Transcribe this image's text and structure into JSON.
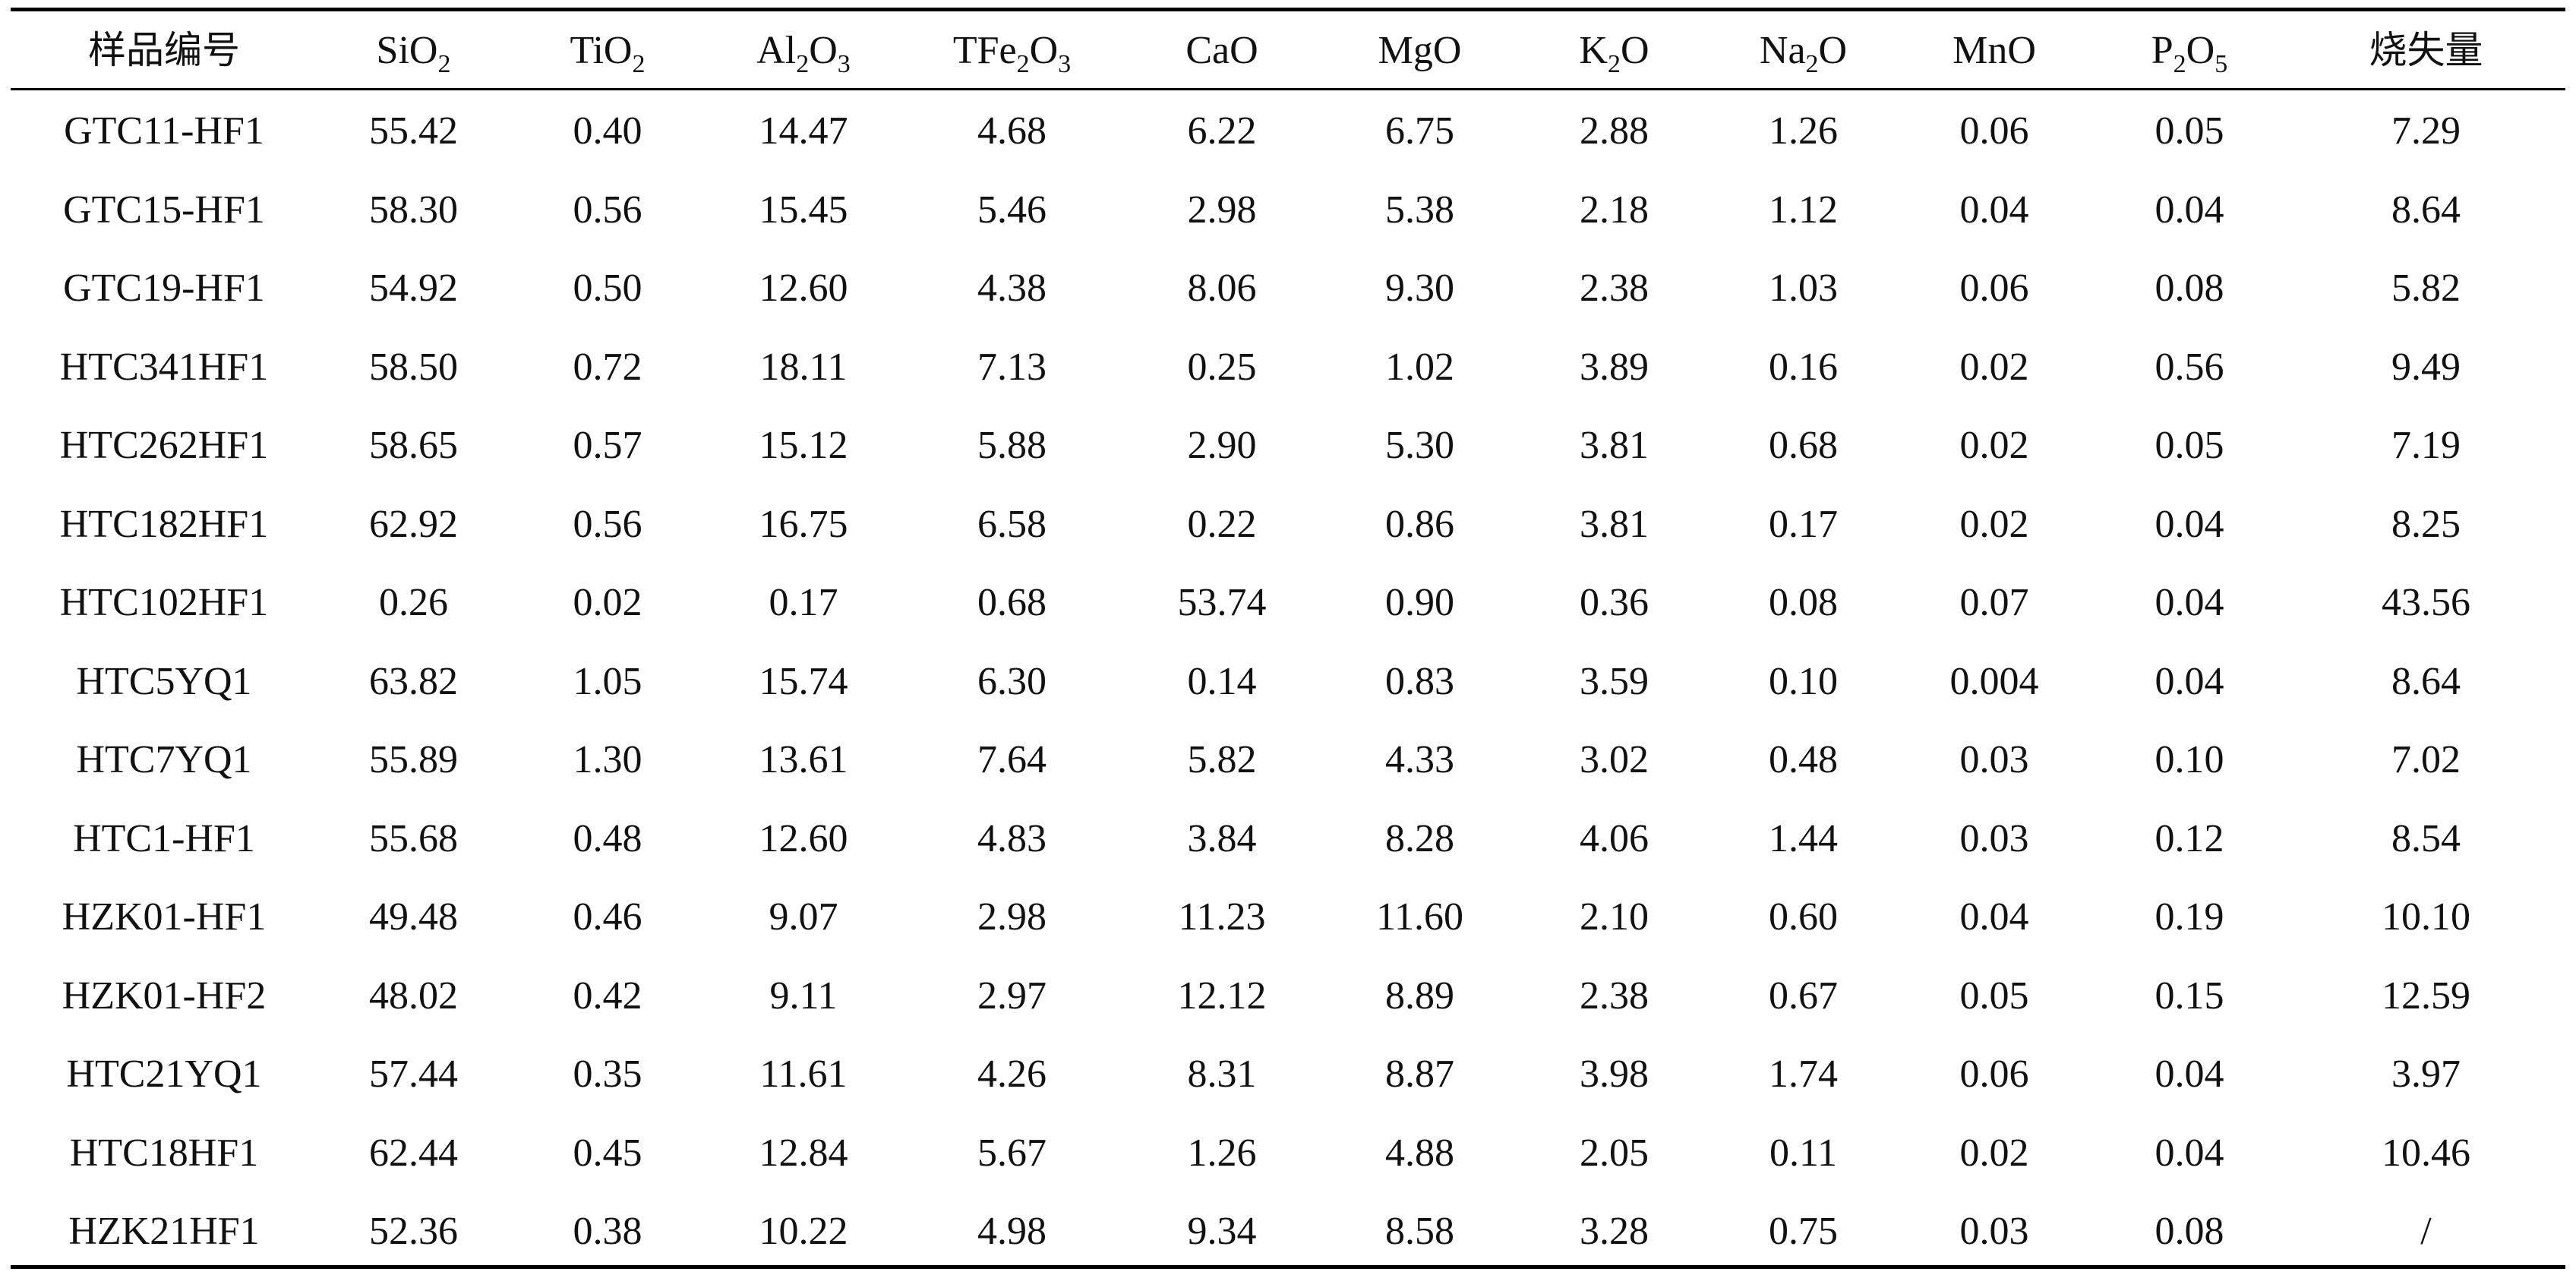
{
  "table": {
    "headers": [
      {
        "pre": "样品编号",
        "sub": "",
        "post": ""
      },
      {
        "pre": "SiO",
        "sub": "2",
        "post": ""
      },
      {
        "pre": "TiO",
        "sub": "2",
        "post": ""
      },
      {
        "pre": "Al",
        "sub": "2",
        "post": "O",
        "sub2": "3"
      },
      {
        "pre": "TFe",
        "sub": "2",
        "post": "O",
        "sub2": "3"
      },
      {
        "pre": "CaO",
        "sub": "",
        "post": ""
      },
      {
        "pre": "MgO",
        "sub": "",
        "post": ""
      },
      {
        "pre": "K",
        "sub": "2",
        "post": "O"
      },
      {
        "pre": "Na",
        "sub": "2",
        "post": "O"
      },
      {
        "pre": "MnO",
        "sub": "",
        "post": ""
      },
      {
        "pre": "P",
        "sub": "2",
        "post": "O",
        "sub2": "5"
      },
      {
        "pre": "烧失量",
        "sub": "",
        "post": ""
      }
    ],
    "rows": [
      [
        "GTC11-HF1",
        "55.42",
        "0.40",
        "14.47",
        "4.68",
        "6.22",
        "6.75",
        "2.88",
        "1.26",
        "0.06",
        "0.05",
        "7.29"
      ],
      [
        "GTC15-HF1",
        "58.30",
        "0.56",
        "15.45",
        "5.46",
        "2.98",
        "5.38",
        "2.18",
        "1.12",
        "0.04",
        "0.04",
        "8.64"
      ],
      [
        "GTC19-HF1",
        "54.92",
        "0.50",
        "12.60",
        "4.38",
        "8.06",
        "9.30",
        "2.38",
        "1.03",
        "0.06",
        "0.08",
        "5.82"
      ],
      [
        "HTC341HF1",
        "58.50",
        "0.72",
        "18.11",
        "7.13",
        "0.25",
        "1.02",
        "3.89",
        "0.16",
        "0.02",
        "0.56",
        "9.49"
      ],
      [
        "HTC262HF1",
        "58.65",
        "0.57",
        "15.12",
        "5.88",
        "2.90",
        "5.30",
        "3.81",
        "0.68",
        "0.02",
        "0.05",
        "7.19"
      ],
      [
        "HTC182HF1",
        "62.92",
        "0.56",
        "16.75",
        "6.58",
        "0.22",
        "0.86",
        "3.81",
        "0.17",
        "0.02",
        "0.04",
        "8.25"
      ],
      [
        "HTC102HF1",
        "0.26",
        "0.02",
        "0.17",
        "0.68",
        "53.74",
        "0.90",
        "0.36",
        "0.08",
        "0.07",
        "0.04",
        "43.56"
      ],
      [
        "HTC5YQ1",
        "63.82",
        "1.05",
        "15.74",
        "6.30",
        "0.14",
        "0.83",
        "3.59",
        "0.10",
        "0.004",
        "0.04",
        "8.64"
      ],
      [
        "HTC7YQ1",
        "55.89",
        "1.30",
        "13.61",
        "7.64",
        "5.82",
        "4.33",
        "3.02",
        "0.48",
        "0.03",
        "0.10",
        "7.02"
      ],
      [
        "HTC1-HF1",
        "55.68",
        "0.48",
        "12.60",
        "4.83",
        "3.84",
        "8.28",
        "4.06",
        "1.44",
        "0.03",
        "0.12",
        "8.54"
      ],
      [
        "HZK01-HF1",
        "49.48",
        "0.46",
        "9.07",
        "2.98",
        "11.23",
        "11.60",
        "2.10",
        "0.60",
        "0.04",
        "0.19",
        "10.10"
      ],
      [
        "HZK01-HF2",
        "48.02",
        "0.42",
        "9.11",
        "2.97",
        "12.12",
        "8.89",
        "2.38",
        "0.67",
        "0.05",
        "0.15",
        "12.59"
      ],
      [
        "HTC21YQ1",
        "57.44",
        "0.35",
        "11.61",
        "4.26",
        "8.31",
        "8.87",
        "3.98",
        "1.74",
        "0.06",
        "0.04",
        "3.97"
      ],
      [
        "HTC18HF1",
        "62.44",
        "0.45",
        "12.84",
        "5.67",
        "1.26",
        "4.88",
        "2.05",
        "0.11",
        "0.02",
        "0.04",
        "10.46"
      ],
      [
        "HZK21HF1",
        "52.36",
        "0.38",
        "10.22",
        "4.98",
        "9.34",
        "8.58",
        "3.28",
        "0.75",
        "0.03",
        "0.08",
        "/"
      ]
    ]
  }
}
